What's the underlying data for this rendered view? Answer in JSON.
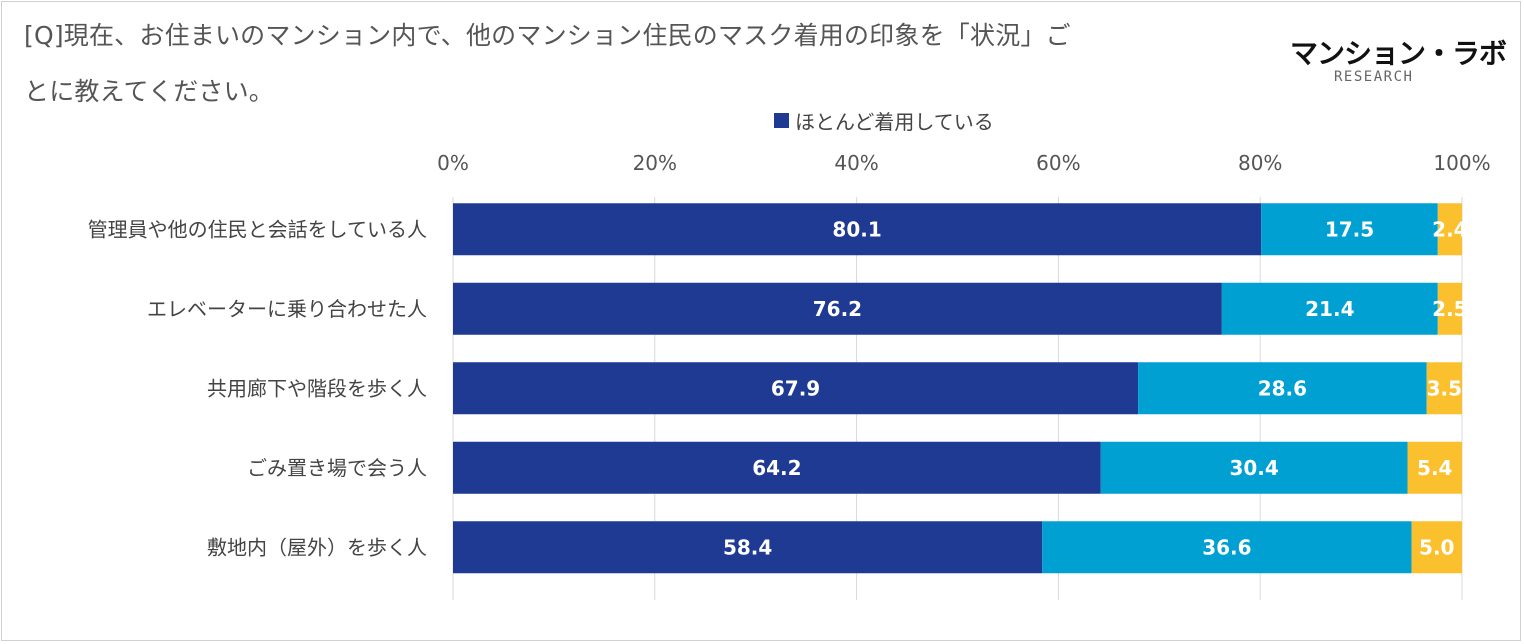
{
  "title": {
    "line1": "[Q]現在、お住まいのマンション内で、他のマンション住民のマスク着用の印象を「状況」ご",
    "line2": "とに教えてください。"
  },
  "logo": {
    "main": "マンション・ラボ",
    "sub": "RESEARCH"
  },
  "chart_data": {
    "type": "bar",
    "orientation": "horizontal",
    "stacked": true,
    "percent_stacked": true,
    "xlim": [
      0,
      100
    ],
    "x_ticks": [
      "0%",
      "20%",
      "40%",
      "60%",
      "80%",
      "100%"
    ],
    "x_tick_values": [
      0,
      20,
      40,
      60,
      80,
      100
    ],
    "grid": true,
    "legend_position": "top",
    "legend": [
      "ほとんど着用している"
    ],
    "categories": [
      "管理員や他の住民と会話をしている人",
      "エレベーターに乗り合わせた人",
      "共用廊下や階段を歩く人",
      "ごみ置き場で会う人",
      "敷地内（屋外）を歩く人"
    ],
    "series": [
      {
        "name": "ほとんど着用している",
        "color": "#1f3a93",
        "values": [
          80.1,
          76.2,
          67.9,
          64.2,
          58.4
        ],
        "labels": [
          "80.1",
          "76.2",
          "67.9",
          "64.2",
          "58.4"
        ]
      },
      {
        "name": "",
        "color": "#00a0d2",
        "values": [
          17.5,
          21.4,
          28.6,
          30.4,
          36.6
        ],
        "labels": [
          "17.5",
          "21.4",
          "28.6",
          "30.4",
          "36.6"
        ]
      },
      {
        "name": "",
        "color": "#fbc02d",
        "values": [
          2.4,
          2.5,
          3.5,
          5.4,
          5.0
        ],
        "labels": [
          "2.4",
          "2.5",
          "3.5",
          "5.4",
          "5.0"
        ]
      }
    ]
  }
}
